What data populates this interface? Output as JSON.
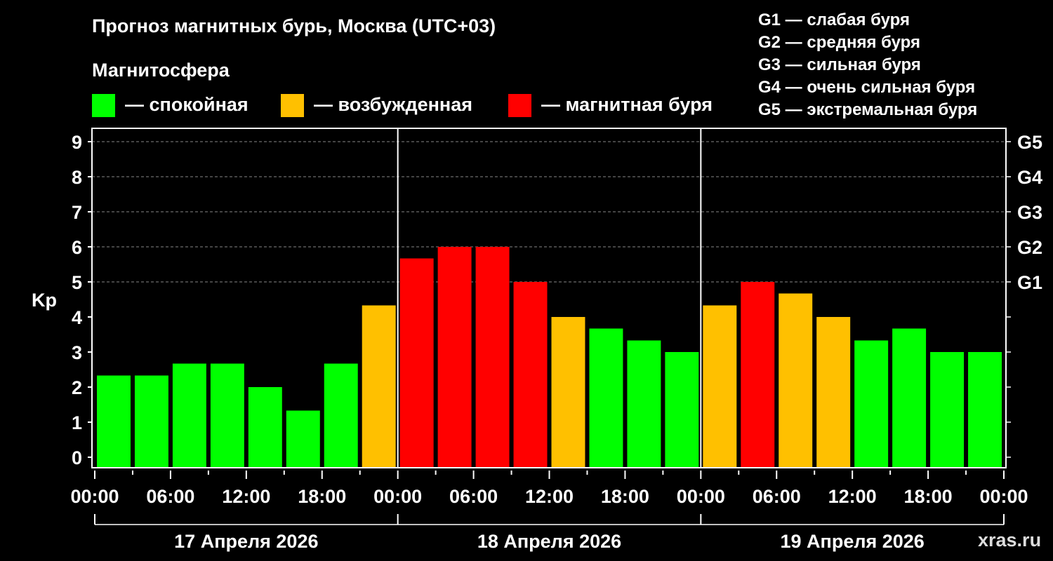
{
  "title": "Прогноз магнитных бурь, Москва (UTC+03)",
  "magnetosphere": {
    "title": "Магнитосфера",
    "legend": [
      {
        "label": "— спокойная",
        "color": "#00ff00"
      },
      {
        "label": "— возбужденная",
        "color": "#ffc000"
      },
      {
        "label": "— магнитная буря",
        "color": "#ff0000"
      }
    ]
  },
  "g_scale": [
    "G1 — слабая буря",
    "G2 — средняя буря",
    "G3 — сильная буря",
    "G4 — очень сильная буря",
    "G5 — экстремальная буря"
  ],
  "watermark": "xras.ru",
  "chart_data": {
    "type": "bar",
    "ylabel": "Kp",
    "ylim": [
      0,
      9
    ],
    "yticks": [
      "0",
      "1",
      "2",
      "3",
      "4",
      "5",
      "6",
      "7",
      "8",
      "9"
    ],
    "right_ticks": [
      {
        "kp": 5,
        "label": "G1"
      },
      {
        "kp": 6,
        "label": "G2"
      },
      {
        "kp": 7,
        "label": "G3"
      },
      {
        "kp": 8,
        "label": "G4"
      },
      {
        "kp": 9,
        "label": "G5"
      }
    ],
    "grid": "dashed horizontal at Kp 5-9",
    "xtick_labels": [
      "00:00",
      "06:00",
      "12:00",
      "18:00",
      "00:00",
      "06:00",
      "12:00",
      "18:00",
      "00:00",
      "06:00",
      "12:00",
      "18:00",
      "00:00"
    ],
    "days": [
      "17 Апреля 2026",
      "18 Апреля 2026",
      "19 Апреля 2026"
    ],
    "interval_hours": 3,
    "values": [
      2.33,
      2.33,
      2.67,
      2.67,
      2.0,
      1.33,
      2.67,
      4.33,
      5.67,
      6.0,
      6.0,
      5.0,
      4.0,
      3.67,
      3.33,
      3.0,
      4.33,
      5.0,
      4.67,
      4.0,
      3.33,
      3.67,
      3.0,
      3.0
    ],
    "colors": [
      "#00ff00",
      "#00ff00",
      "#00ff00",
      "#00ff00",
      "#00ff00",
      "#00ff00",
      "#00ff00",
      "#ffc000",
      "#ff0000",
      "#ff0000",
      "#ff0000",
      "#ff0000",
      "#ffc000",
      "#00ff00",
      "#00ff00",
      "#00ff00",
      "#ffc000",
      "#ff0000",
      "#ffc000",
      "#ffc000",
      "#00ff00",
      "#00ff00",
      "#00ff00",
      "#00ff00"
    ]
  }
}
